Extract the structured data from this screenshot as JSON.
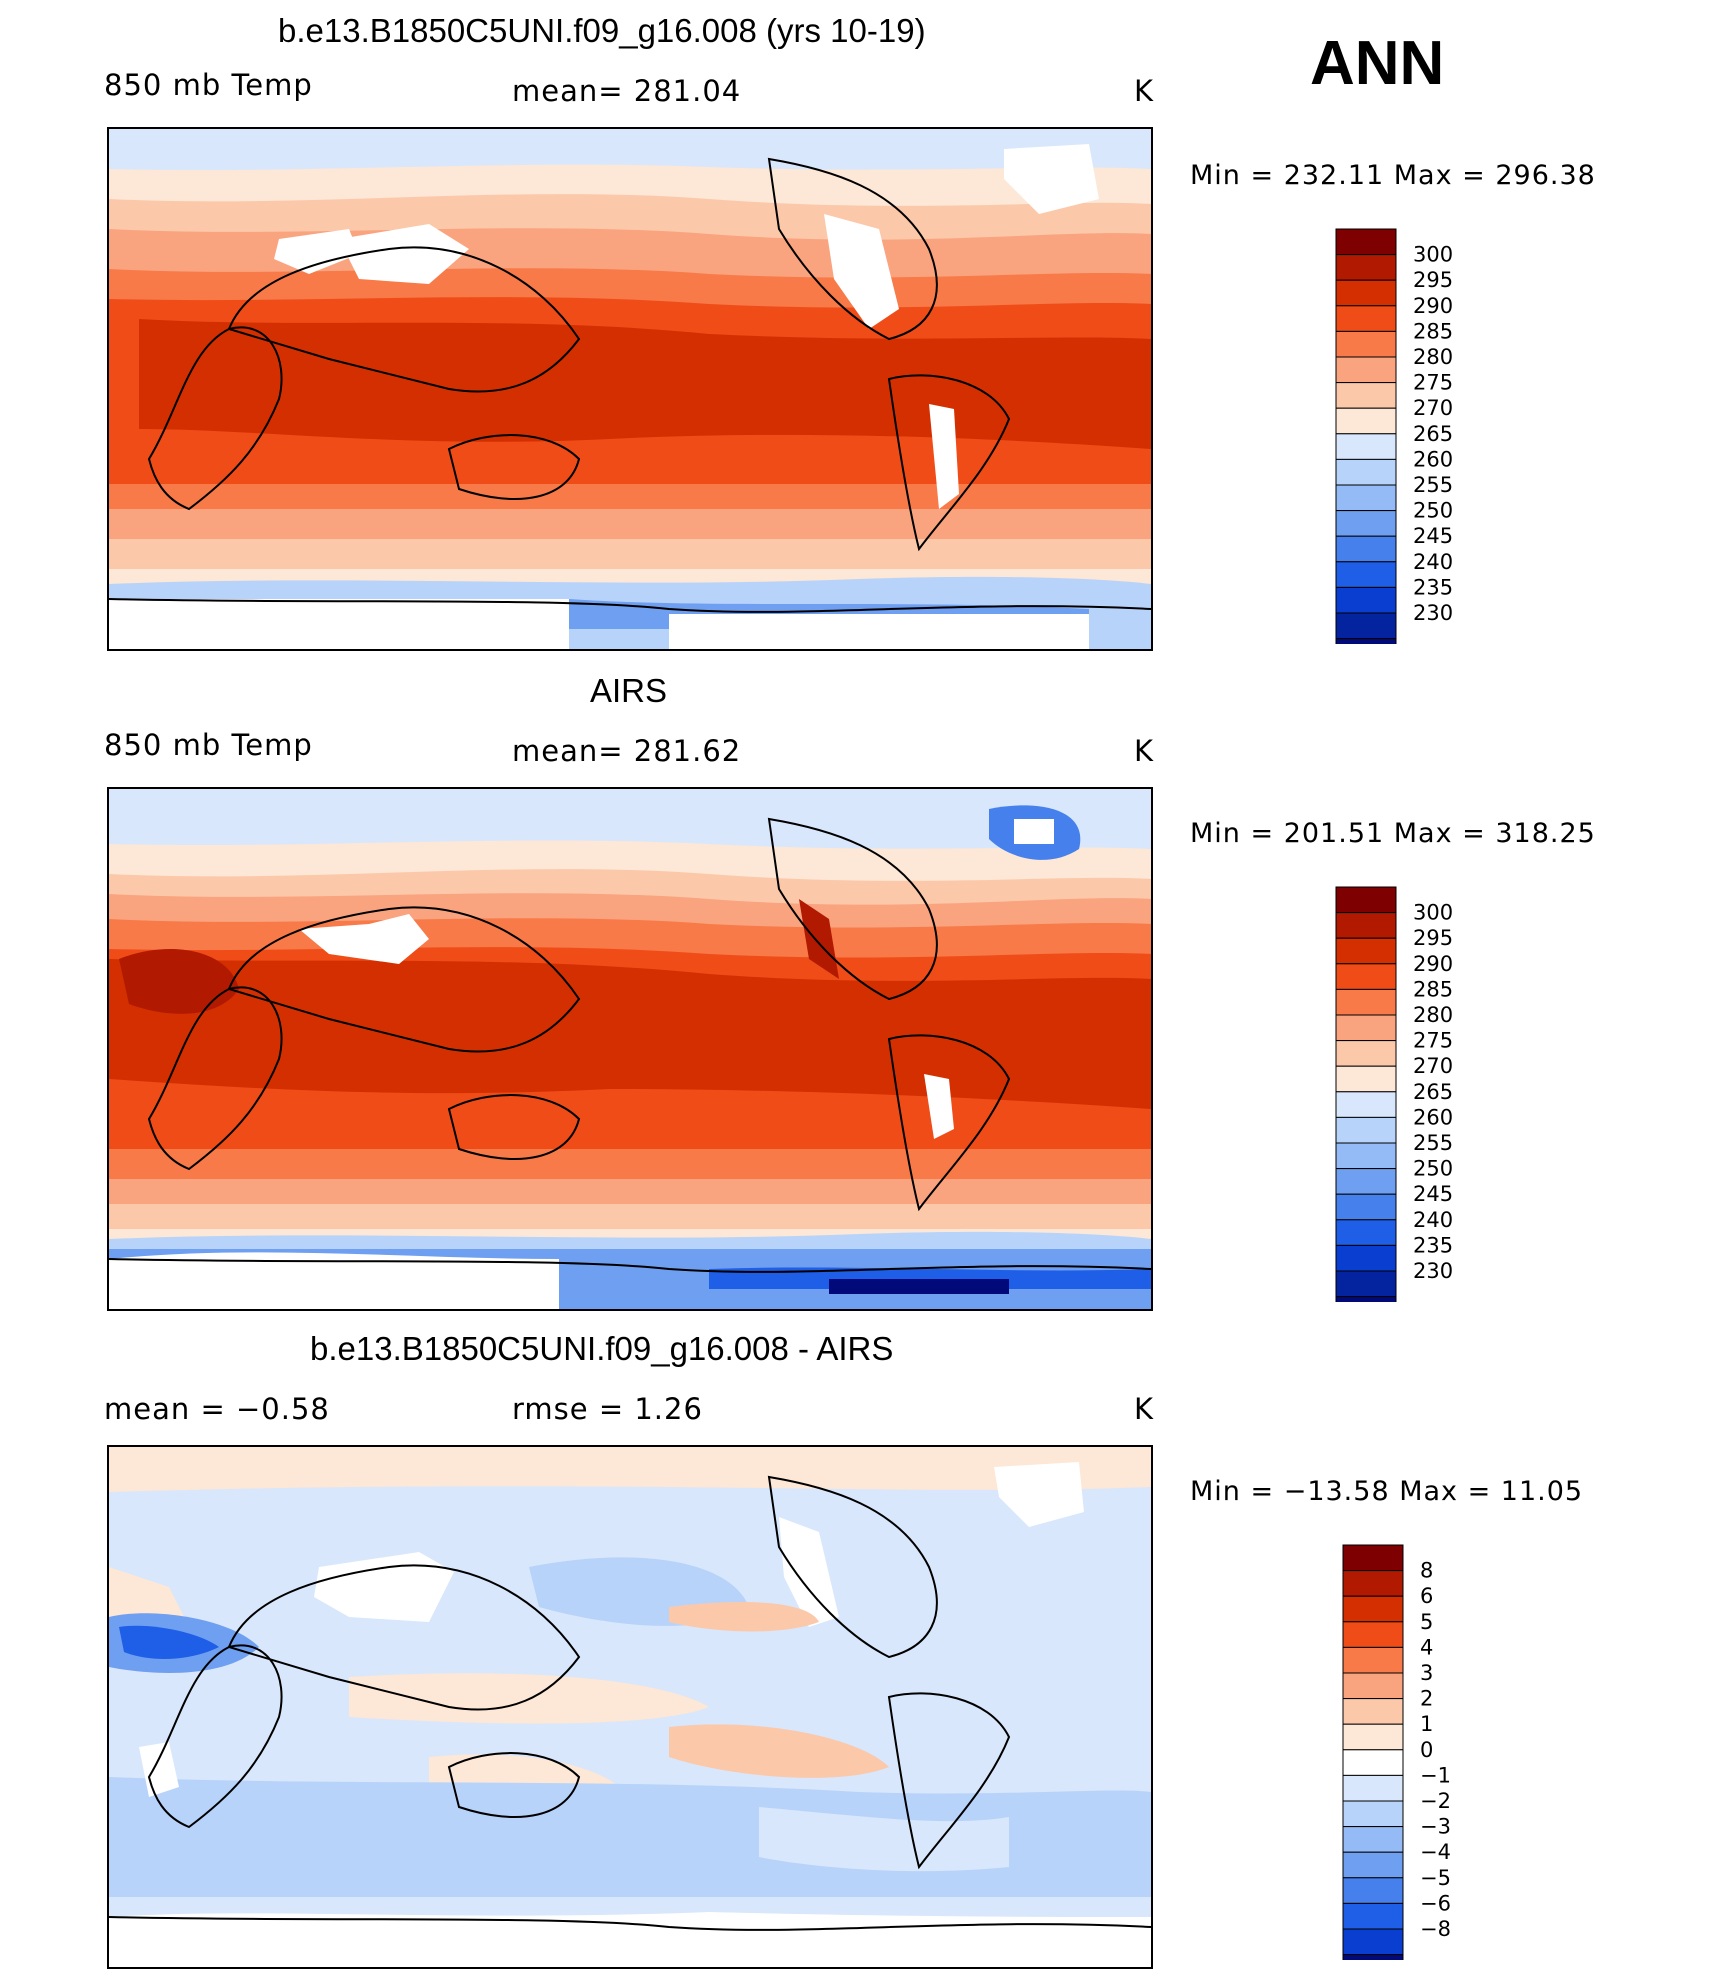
{
  "season": "ANN",
  "colors": {
    "temp": [
      "#7f0000",
      "#b11a00",
      "#d42f00",
      "#ef4c18",
      "#f77a48",
      "#faa37f",
      "#fcc8aa",
      "#fde7d6",
      "#d8e7fb",
      "#b8d3fa",
      "#95bbf6",
      "#6e9ff0",
      "#4680ed",
      "#1f5ee6",
      "#0a3ed0",
      "#04239f",
      "#020a7a"
    ],
    "diff": [
      "#7f0000",
      "#b11a00",
      "#d42f00",
      "#ef4c18",
      "#f77a48",
      "#faa37f",
      "#fcc8aa",
      "#fde7d6",
      "#ffffff",
      "#d8e7fb",
      "#b8d3fa",
      "#95bbf6",
      "#6e9ff0",
      "#4680ed",
      "#1f5ee6",
      "#0a3ed0",
      "#020a7a"
    ]
  },
  "panels": [
    {
      "title": "b.e13.B1850C5UNI.f09_g16.008 (yrs 10-19)",
      "left_label": "850 mb Temp",
      "center_label": "mean= 281.04",
      "units": "K",
      "minmax": "Min = 232.11 Max = 296.38",
      "ticks": [
        "300",
        "295",
        "290",
        "285",
        "280",
        "275",
        "270",
        "265",
        "260",
        "255",
        "250",
        "245",
        "240",
        "235",
        "230"
      ]
    },
    {
      "title": "AIRS",
      "left_label": "850 mb Temp",
      "center_label": "mean= 281.62",
      "units": "K",
      "minmax": "Min = 201.51 Max = 318.25",
      "ticks": [
        "300",
        "295",
        "290",
        "285",
        "280",
        "275",
        "270",
        "265",
        "260",
        "255",
        "250",
        "245",
        "240",
        "235",
        "230"
      ]
    },
    {
      "title": "b.e13.B1850C5UNI.f09_g16.008 - AIRS",
      "left_label": "mean =   −0.58",
      "center_label": "rmse =    1.26",
      "units": "K",
      "minmax": "Min = −13.58 Max =  11.05",
      "ticks": [
        "8",
        "6",
        "5",
        "4",
        "3",
        "2",
        "1",
        "0",
        "−1",
        "−2",
        "−3",
        "−4",
        "−5",
        "−6",
        "−8"
      ]
    }
  ]
}
